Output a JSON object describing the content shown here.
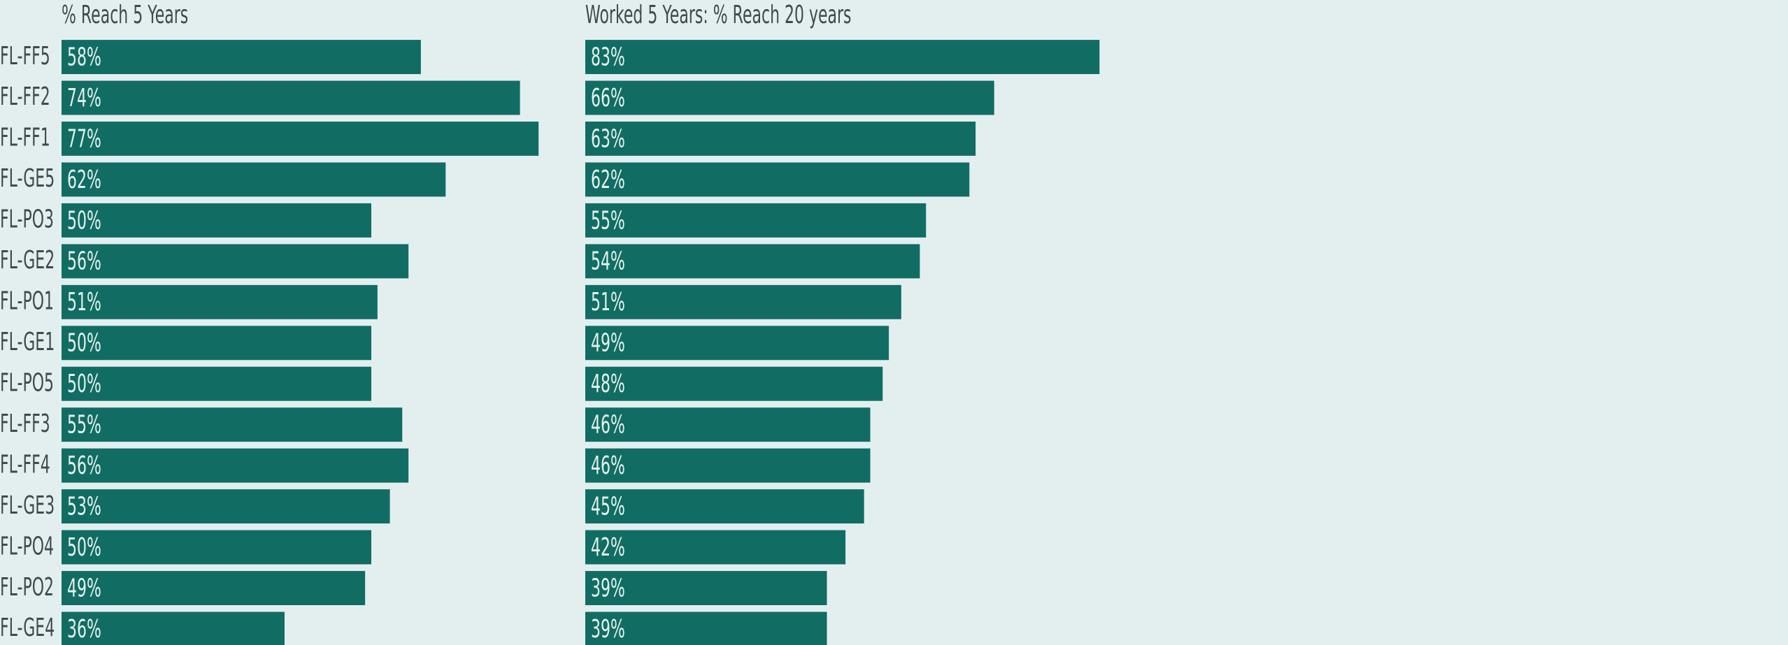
{
  "chart_data": [
    {
      "type": "bar",
      "title": "% Reach 5 Years",
      "color": "#116d63",
      "categories": [
        "FL-FF5",
        "FL-FF2",
        "FL-FF1",
        "FL-GE5",
        "FL-PO3",
        "FL-GE2",
        "FL-PO1",
        "FL-GE1",
        "FL-PO5",
        "FL-FF3",
        "FL-FF4",
        "FL-GE3",
        "FL-PO4",
        "FL-PO2",
        "FL-GE4"
      ],
      "values": [
        58,
        74,
        77,
        62,
        50,
        56,
        51,
        50,
        50,
        55,
        56,
        53,
        50,
        49,
        36
      ],
      "value_labels": [
        "58%",
        "74%",
        "77%",
        "62%",
        "50%",
        "56%",
        "51%",
        "50%",
        "50%",
        "55%",
        "56%",
        "53%",
        "50%",
        "49%",
        "36%"
      ]
    },
    {
      "type": "bar",
      "title": "Worked 5 Years: % Reach 20 years",
      "color": "#116d63",
      "values": [
        83,
        66,
        63,
        62,
        55,
        54,
        51,
        49,
        48,
        46,
        46,
        45,
        42,
        39,
        39
      ],
      "value_labels": [
        "83%",
        "66%",
        "63%",
        "62%",
        "55%",
        "54%",
        "51%",
        "49%",
        "48%",
        "46%",
        "46%",
        "45%",
        "42%",
        "39%",
        "39%"
      ]
    }
  ]
}
